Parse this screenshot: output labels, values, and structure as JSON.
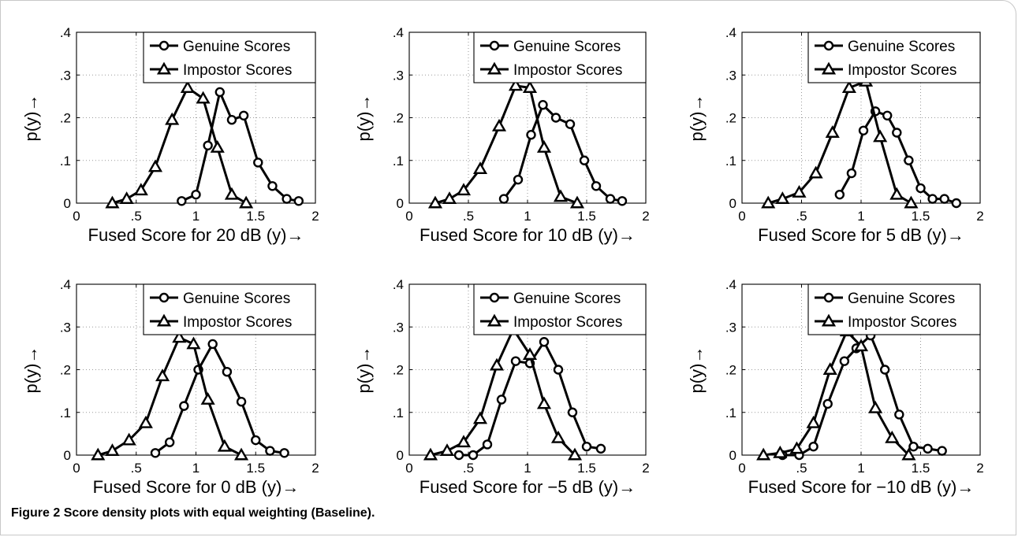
{
  "caption": {
    "label": "Figure 2",
    "text": "Score density plots with equal weighting (Baseline)."
  },
  "colors": {
    "line": "#000000",
    "grid": "#9a9a9a",
    "frame": "#c8c8c8"
  },
  "chart_data": [
    {
      "type": "line",
      "panel": "20 dB",
      "xlabel": "Fused Score for 20 dB (y)→",
      "ylabel": "p(y)→",
      "xlim": [
        0,
        2
      ],
      "ylim": [
        0,
        0.4
      ],
      "xticks": [
        0,
        0.5,
        1,
        1.5,
        2
      ],
      "yticks": [
        0,
        0.1,
        0.2,
        0.3,
        0.4
      ],
      "grid": true,
      "legend_position": "top-right",
      "series": [
        {
          "name": "Genuine Scores",
          "marker": "circle",
          "x": [
            0.88,
            1.0,
            1.1,
            1.2,
            1.3,
            1.4,
            1.52,
            1.64,
            1.76,
            1.86
          ],
          "y": [
            0.005,
            0.02,
            0.135,
            0.26,
            0.195,
            0.205,
            0.095,
            0.04,
            0.01,
            0.005
          ]
        },
        {
          "name": "Impostor Scores",
          "marker": "triangle",
          "x": [
            0.3,
            0.42,
            0.54,
            0.66,
            0.8,
            0.93,
            1.06,
            1.18,
            1.3,
            1.42
          ],
          "y": [
            0.0,
            0.01,
            0.03,
            0.085,
            0.195,
            0.27,
            0.245,
            0.13,
            0.02,
            0.0
          ]
        }
      ]
    },
    {
      "type": "line",
      "panel": "10 dB",
      "xlabel": "Fused Score for 10 dB (y)→",
      "ylabel": "p(y)→",
      "xlim": [
        0,
        2
      ],
      "ylim": [
        0,
        0.4
      ],
      "xticks": [
        0,
        0.5,
        1,
        1.5,
        2
      ],
      "yticks": [
        0,
        0.1,
        0.2,
        0.3,
        0.4
      ],
      "grid": true,
      "legend_position": "top-right",
      "series": [
        {
          "name": "Genuine Scores",
          "marker": "circle",
          "x": [
            0.8,
            0.92,
            1.03,
            1.13,
            1.24,
            1.36,
            1.48,
            1.58,
            1.7,
            1.8
          ],
          "y": [
            0.01,
            0.055,
            0.16,
            0.23,
            0.2,
            0.185,
            0.1,
            0.04,
            0.01,
            0.005
          ]
        },
        {
          "name": "Impostor Scores",
          "marker": "triangle",
          "x": [
            0.22,
            0.34,
            0.46,
            0.6,
            0.76,
            0.9,
            1.02,
            1.14,
            1.28,
            1.42
          ],
          "y": [
            0.0,
            0.01,
            0.03,
            0.08,
            0.18,
            0.275,
            0.27,
            0.13,
            0.015,
            0.0
          ]
        }
      ]
    },
    {
      "type": "line",
      "panel": "5 dB",
      "xlabel": "Fused Score for 5 dB (y)→",
      "ylabel": "p(y)→",
      "xlim": [
        0,
        2
      ],
      "ylim": [
        0,
        0.4
      ],
      "xticks": [
        0,
        0.5,
        1,
        1.5,
        2
      ],
      "yticks": [
        0,
        0.1,
        0.2,
        0.3,
        0.4
      ],
      "grid": true,
      "legend_position": "top-right",
      "series": [
        {
          "name": "Genuine Scores",
          "marker": "circle",
          "x": [
            0.82,
            0.92,
            1.02,
            1.12,
            1.22,
            1.3,
            1.4,
            1.5,
            1.6,
            1.7,
            1.8
          ],
          "y": [
            0.02,
            0.07,
            0.17,
            0.215,
            0.205,
            0.165,
            0.1,
            0.035,
            0.01,
            0.01,
            0.0
          ]
        },
        {
          "name": "Impostor Scores",
          "marker": "triangle",
          "x": [
            0.22,
            0.34,
            0.48,
            0.62,
            0.76,
            0.9,
            1.04,
            1.16,
            1.3,
            1.42
          ],
          "y": [
            0.0,
            0.01,
            0.025,
            0.07,
            0.165,
            0.27,
            0.285,
            0.155,
            0.02,
            0.0
          ]
        }
      ]
    },
    {
      "type": "line",
      "panel": "0 dB",
      "xlabel": "Fused Score for 0 dB (y)→",
      "ylabel": "p(y)→",
      "xlim": [
        0,
        2
      ],
      "ylim": [
        0,
        0.4
      ],
      "xticks": [
        0,
        0.5,
        1,
        1.5,
        2
      ],
      "yticks": [
        0,
        0.1,
        0.2,
        0.3,
        0.4
      ],
      "grid": true,
      "legend_position": "top-right",
      "series": [
        {
          "name": "Genuine Scores",
          "marker": "circle",
          "x": [
            0.66,
            0.78,
            0.9,
            1.02,
            1.14,
            1.26,
            1.38,
            1.5,
            1.62,
            1.74
          ],
          "y": [
            0.005,
            0.03,
            0.115,
            0.2,
            0.26,
            0.195,
            0.125,
            0.035,
            0.01,
            0.005
          ]
        },
        {
          "name": "Impostor Scores",
          "marker": "triangle",
          "x": [
            0.18,
            0.3,
            0.44,
            0.58,
            0.72,
            0.86,
            0.98,
            1.1,
            1.24,
            1.38
          ],
          "y": [
            0.0,
            0.01,
            0.035,
            0.075,
            0.185,
            0.275,
            0.26,
            0.13,
            0.02,
            0.0
          ]
        }
      ]
    },
    {
      "type": "line",
      "panel": "-5 dB",
      "xlabel": "Fused Score for −5 dB (y)→",
      "ylabel": "p(y)→",
      "xlim": [
        0,
        2
      ],
      "ylim": [
        0,
        0.4
      ],
      "xticks": [
        0,
        0.5,
        1,
        1.5,
        2
      ],
      "yticks": [
        0,
        0.1,
        0.2,
        0.3,
        0.4
      ],
      "grid": true,
      "legend_position": "top-right",
      "series": [
        {
          "name": "Genuine Scores",
          "marker": "circle",
          "x": [
            0.42,
            0.54,
            0.66,
            0.78,
            0.9,
            1.02,
            1.14,
            1.26,
            1.38,
            1.5,
            1.62
          ],
          "y": [
            0.0,
            0.0,
            0.025,
            0.13,
            0.22,
            0.215,
            0.265,
            0.2,
            0.1,
            0.02,
            0.015
          ]
        },
        {
          "name": "Impostor Scores",
          "marker": "triangle",
          "x": [
            0.18,
            0.32,
            0.46,
            0.6,
            0.74,
            0.88,
            1.02,
            1.14,
            1.26,
            1.4
          ],
          "y": [
            0.0,
            0.01,
            0.03,
            0.085,
            0.21,
            0.295,
            0.235,
            0.12,
            0.04,
            0.0
          ]
        }
      ]
    },
    {
      "type": "line",
      "panel": "-10 dB",
      "xlabel": "Fused Score for −10 dB (y)→",
      "ylabel": "p(y)→",
      "xlim": [
        0,
        2
      ],
      "ylim": [
        0,
        0.4
      ],
      "xticks": [
        0,
        0.5,
        1,
        1.5,
        2
      ],
      "yticks": [
        0,
        0.1,
        0.2,
        0.3,
        0.4
      ],
      "grid": true,
      "legend_position": "top-right",
      "series": [
        {
          "name": "Genuine Scores",
          "marker": "circle",
          "x": [
            0.34,
            0.48,
            0.6,
            0.72,
            0.86,
            0.96,
            1.08,
            1.2,
            1.32,
            1.44,
            1.56,
            1.68
          ],
          "y": [
            0.0,
            0.0,
            0.02,
            0.12,
            0.22,
            0.25,
            0.28,
            0.2,
            0.095,
            0.02,
            0.015,
            0.01
          ]
        },
        {
          "name": "Impostor Scores",
          "marker": "triangle",
          "x": [
            0.18,
            0.32,
            0.46,
            0.6,
            0.74,
            0.88,
            1.0,
            1.12,
            1.26,
            1.4
          ],
          "y": [
            0.0,
            0.005,
            0.015,
            0.075,
            0.2,
            0.29,
            0.255,
            0.11,
            0.04,
            0.0
          ]
        }
      ]
    }
  ]
}
